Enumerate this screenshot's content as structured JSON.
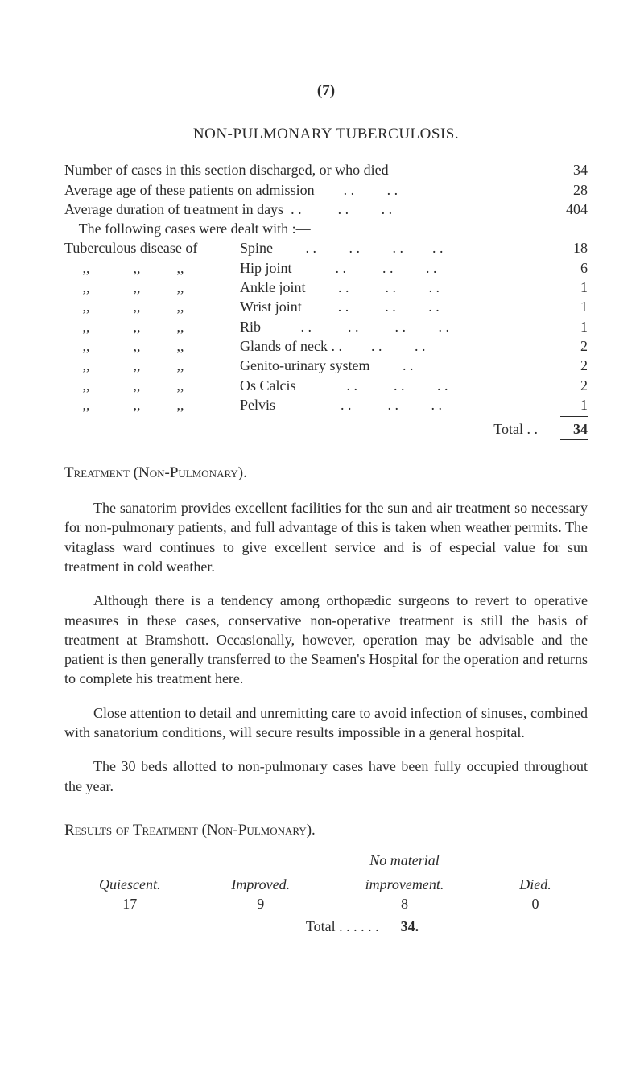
{
  "page_number": "(7)",
  "section_title": "NON-PULMONARY TUBERCULOSIS.",
  "stats": [
    {
      "label": "Number of cases in this section discharged, or who died",
      "value": "34"
    },
    {
      "label": "Average age of these patients on admission",
      "value": "28"
    },
    {
      "label": "Average duration of treatment in days  . .",
      "value": "404"
    }
  ],
  "following_line": "    The following cases were dealt with :—",
  "disease_lead": "Tuberculous disease of",
  "disease_ditto": "     ,,            ,,          ,,",
  "diseases": [
    {
      "name": "Spine",
      "value": "18"
    },
    {
      "name": "Hip joint",
      "value": "6"
    },
    {
      "name": "Ankle joint",
      "value": "1"
    },
    {
      "name": "Wrist joint",
      "value": "1"
    },
    {
      "name": "Rib",
      "value": "1"
    },
    {
      "name": "Glands of neck . .",
      "value": "2"
    },
    {
      "name": "Genito-urinary system",
      "value": "2"
    },
    {
      "name": "Os Calcis",
      "value": "2"
    },
    {
      "name": "Pelvis",
      "value": "1"
    }
  ],
  "total_label": "Total  . .",
  "total_value": "34",
  "treatment_head": "Treatment (Non-Pulmonary).",
  "para1": "The sanatorim provides excellent facilities for the sun and air treatment so necessary for non-pulmonary patients, and full advantage of this is taken when weather permits. The vitaglass ward continues to give excellent service and is of especial value for sun treatment in cold weather.",
  "para2": "Although there is a tendency among orthopædic surgeons to revert to operative measures in these cases, conservative non-operative treatment is still the basis of treatment at Bramshott. Occasionally, however, operation may be advisable and the patient is then generally transferred to the Seamen's Hospital for the operation and returns to complete his treatment here.",
  "para3": "Close attention to detail and unremitting care to avoid infec­tion of sinuses, combined with sanatorium conditions, will secure results impossible in a general hospital.",
  "para4": "The 30 beds allotted to non-pulmonary cases have been fully occupied throughout the year.",
  "results_head": "Results of Treatment (Non-Pulmonary).",
  "results_table": {
    "col1_head": "Quiescent.",
    "col2_head": "Improved.",
    "col3_head1": "No material",
    "col3_head2": "improvement.",
    "col4_head": "Died.",
    "col1_val": "17",
    "col2_val": "9",
    "col3_val": "8",
    "col4_val": "0",
    "total_label": "Total      . .      . .      . .",
    "total_value": "34."
  },
  "colors": {
    "text": "#2b2b2b",
    "background": "#ffffff"
  },
  "typography": {
    "body_fontsize": 18,
    "title_fontsize": 19,
    "font_family": "Georgia, Times New Roman, serif"
  }
}
